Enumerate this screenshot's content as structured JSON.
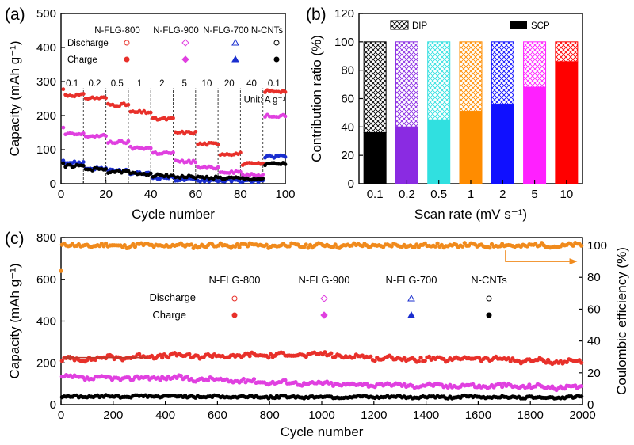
{
  "chart_data": [
    {
      "panel": "(a)",
      "type": "scatter",
      "xlabel": "Cycle number",
      "ylabel": "Capacity (mAh g⁻¹)",
      "xlim": [
        0,
        100
      ],
      "ylim": [
        0,
        500
      ],
      "xticks": [
        "0",
        "20",
        "40",
        "60",
        "80",
        "100"
      ],
      "yticks": [
        "0",
        "100",
        "200",
        "300",
        "400",
        "500"
      ],
      "legend_columns": [
        "N-FLG-800",
        "N-FLG-900",
        "N-FLG-700",
        "N-CNTs"
      ],
      "legend_rows": [
        "Discharge",
        "Charge"
      ],
      "rate_labels": [
        "0.1",
        "0.2",
        "0.5",
        "1",
        "2",
        "5",
        "10",
        "20",
        "40",
        "0.1"
      ],
      "unit_label": "Unit: A g⁻¹",
      "segment_boundaries": [
        10,
        20,
        30,
        40,
        50,
        60,
        70,
        80,
        90
      ],
      "series": [
        {
          "name": "N-FLG-800",
          "color": "#e8302a",
          "segment_values": [
            260,
            252,
            232,
            210,
            190,
            150,
            117,
            88,
            58,
            272
          ]
        },
        {
          "name": "N-FLG-900",
          "color": "#e040e0",
          "segment_values": [
            145,
            140,
            122,
            105,
            90,
            65,
            47,
            35,
            25,
            200
          ]
        },
        {
          "name": "N-FLG-700",
          "color": "#1a2ecf",
          "segment_values": [
            62,
            45,
            38,
            30,
            18,
            12,
            10,
            9,
            8,
            80
          ]
        },
        {
          "name": "N-CNTs",
          "color": "#000000",
          "segment_values": [
            52,
            42,
            35,
            30,
            24,
            20,
            18,
            16,
            14,
            58
          ]
        }
      ]
    },
    {
      "panel": "(b)",
      "type": "bar",
      "xlabel": "Scan rate (mV s⁻¹)",
      "ylabel": "Contribution ratio (%)",
      "ylim": [
        0,
        120
      ],
      "yticks": [
        "0",
        "20",
        "40",
        "60",
        "80",
        "100",
        "120"
      ],
      "categories": [
        "0.1",
        "0.2",
        "0.5",
        "1",
        "2",
        "5",
        "10"
      ],
      "colors": [
        "#000000",
        "#8a2be2",
        "#30e0e0",
        "#ff8c00",
        "#1010ff",
        "#ff20ff",
        "#ff0000"
      ],
      "series": [
        {
          "name": "SCP",
          "values": [
            36,
            40,
            45,
            51,
            56,
            68,
            86
          ]
        },
        {
          "name": "DIP",
          "values": [
            64,
            60,
            55,
            49,
            44,
            32,
            14
          ]
        }
      ],
      "legend": [
        "DIP",
        "SCP"
      ]
    },
    {
      "panel": "(c)",
      "type": "scatter",
      "xlabel": "Cycle number",
      "ylabel": "Capacity (mAh g⁻¹)",
      "y2label": "Coulombic efficiency (%)",
      "xlim": [
        0,
        2000
      ],
      "ylim": [
        0,
        800
      ],
      "y2lim": [
        0,
        105
      ],
      "xticks": [
        "0",
        "200",
        "400",
        "600",
        "800",
        "1000",
        "1200",
        "1400",
        "1600",
        "1800",
        "2000"
      ],
      "yticks": [
        "0",
        "200",
        "400",
        "600",
        "800"
      ],
      "y2ticks": [
        "0",
        "20",
        "40",
        "60",
        "80",
        "100"
      ],
      "legend_columns": [
        "N-FLG-800",
        "N-FLG-900",
        "N-FLG-700",
        "N-CNTs"
      ],
      "legend_rows": [
        "Discharge",
        "Charge"
      ],
      "series": [
        {
          "name": "Coulombic efficiency",
          "color": "#f08a1c",
          "axis": "right",
          "x": [
            0,
            2000
          ],
          "y": [
            100,
            100
          ]
        },
        {
          "name": "N-FLG-800",
          "color": "#e8302a",
          "x": [
            0,
            200,
            400,
            600,
            800,
            1000,
            1200,
            1400,
            1600,
            1800,
            2000
          ],
          "y": [
            215,
            225,
            235,
            232,
            238,
            240,
            225,
            215,
            222,
            210,
            205
          ]
        },
        {
          "name": "N-FLG-900",
          "color": "#e040e0",
          "x": [
            0,
            200,
            400,
            600,
            800,
            1000,
            1200,
            1400,
            1600,
            1800,
            2000
          ],
          "y": [
            130,
            125,
            130,
            118,
            108,
            100,
            95,
            92,
            90,
            88,
            78
          ]
        },
        {
          "name": "N-CNTs",
          "color": "#000000",
          "x": [
            0,
            200,
            400,
            600,
            800,
            1000,
            1200,
            1400,
            1600,
            1800,
            2000
          ],
          "y": [
            38,
            40,
            40,
            38,
            37,
            37,
            36,
            36,
            37,
            35,
            35
          ]
        }
      ]
    }
  ]
}
